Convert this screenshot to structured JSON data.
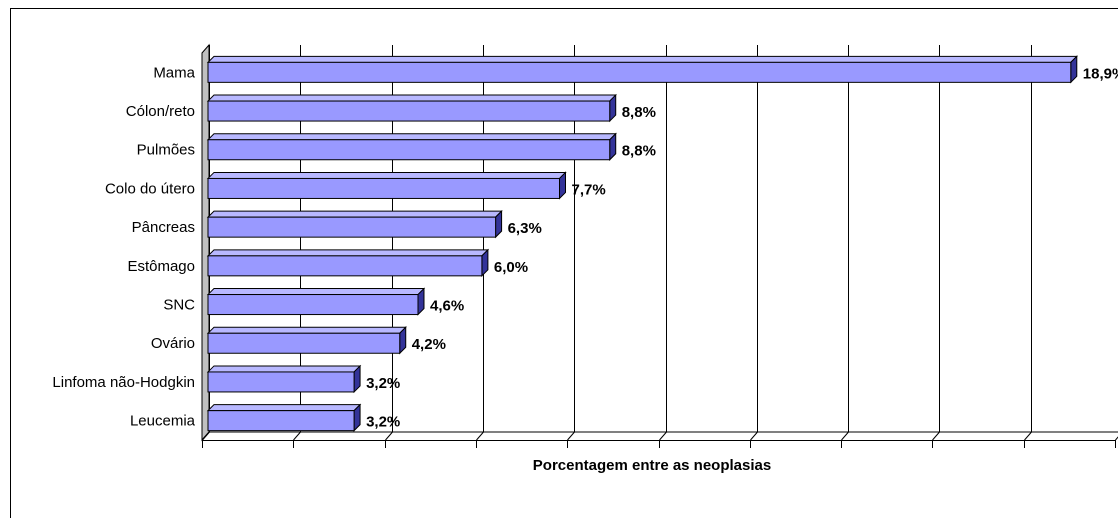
{
  "chart_data": {
    "type": "bar3d_horizontal",
    "x_label": "Porcentagem entre as neoplasias",
    "categories": [
      "Mama",
      "Cólon/reto",
      "Pulmões",
      "Colo do útero",
      "Pâncreas",
      "Estômago",
      "SNC",
      "Ovário",
      "Linfoma não-Hodgkin",
      "Leucemia"
    ],
    "values": [
      18.9,
      8.8,
      8.8,
      7.7,
      6.3,
      6.0,
      4.6,
      4.2,
      3.2,
      3.2
    ],
    "value_labels": [
      "18,9%",
      "8,8%",
      "8,8%",
      "7,7%",
      "6,3%",
      "6,0%",
      "4,6%",
      "4,2%",
      "3,2%",
      "3,2%"
    ],
    "color": "#9999ff",
    "label_color": "#ff0000",
    "xlim": [
      0,
      20
    ],
    "xticks": [
      0,
      2,
      4,
      6,
      8,
      10,
      12,
      14,
      16,
      18,
      20
    ],
    "grid": true
  }
}
